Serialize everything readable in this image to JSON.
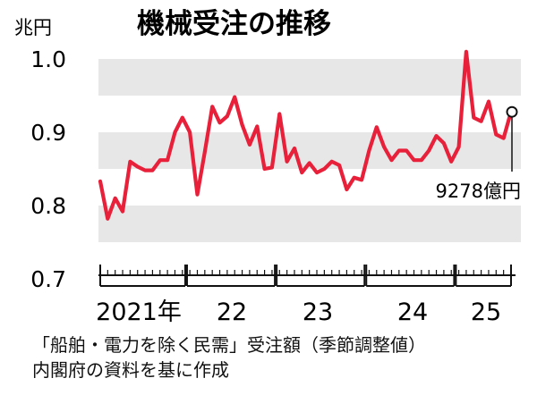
{
  "chart_data": {
    "type": "line",
    "title": "機械受注の推移",
    "ylabel": "兆円",
    "ylim": [
      0.7,
      1.0
    ],
    "yticks": [
      "1.0",
      "0.9",
      "0.8",
      "0.7"
    ],
    "xlabels": [
      "2021年",
      "22",
      "23",
      "24",
      "25"
    ],
    "grid": "alternating horizontal bands",
    "series": [
      {
        "color": "#e8203a",
        "values": [
          0.833,
          0.782,
          0.81,
          0.792,
          0.86,
          0.853,
          0.848,
          0.848,
          0.862,
          0.862,
          0.9,
          0.92,
          0.9,
          0.815,
          0.873,
          0.935,
          0.913,
          0.922,
          0.948,
          0.91,
          0.883,
          0.908,
          0.85,
          0.852,
          0.925,
          0.86,
          0.878,
          0.845,
          0.858,
          0.845,
          0.85,
          0.86,
          0.855,
          0.822,
          0.838,
          0.835,
          0.875,
          0.907,
          0.88,
          0.862,
          0.875,
          0.875,
          0.862,
          0.862,
          0.875,
          0.895,
          0.885,
          0.86,
          0.88,
          1.01,
          0.92,
          0.915,
          0.942,
          0.897,
          0.892,
          0.928
        ]
      }
    ],
    "annotation": "9278億円",
    "last_value": 0.9278,
    "colors": {
      "line": "#e8203a",
      "band": "#e7e7e7",
      "axis": "#111111"
    }
  },
  "source": {
    "line1": "「船舶・電力を除く民需」受注額（季節調整値）",
    "line2": "内閣府の資料を基に作成"
  }
}
